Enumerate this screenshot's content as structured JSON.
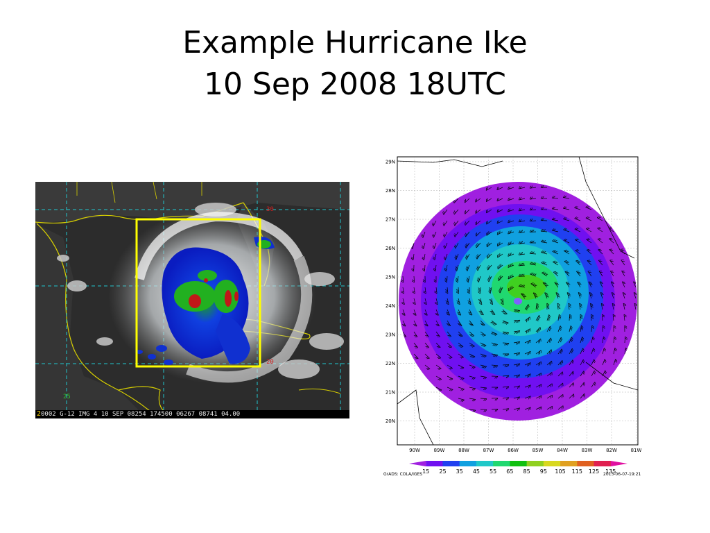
{
  "slide": {
    "title_line1": "Example Hurricane Ike",
    "title_line2": "10 Sep 2008 18UTC"
  },
  "satellite": {
    "frame_number": "2",
    "caption": "0002 G-12 IMG   4 10 SEP 08254 174500 06267 08741 04.00",
    "lat_labels": [
      "30",
      "25",
      "20"
    ],
    "box_color": "#ffff00",
    "colors": {
      "deep": "#1030d0",
      "mid": "#22b020",
      "core": "#c01818",
      "cloud": "#e0f0f0"
    }
  },
  "model": {
    "lat_ticks": [
      "29N",
      "28N",
      "27N",
      "26N",
      "25N",
      "24N",
      "23N",
      "22N",
      "21N",
      "20N"
    ],
    "lon_ticks": [
      "90W",
      "89W",
      "88W",
      "87W",
      "86W",
      "85W",
      "84W",
      "83W",
      "82W",
      "81W"
    ],
    "colorbar_values": [
      "15",
      "25",
      "35",
      "45",
      "55",
      "65",
      "85",
      "95",
      "105",
      "115",
      "125",
      "135"
    ],
    "colorbar_colors": [
      "#a020e0",
      "#7010f0",
      "#2040f0",
      "#10a0e0",
      "#20c8c8",
      "#20d870",
      "#10c010",
      "#90d020",
      "#d8d820",
      "#e0a020",
      "#e06020",
      "#e02050",
      "#e010a0"
    ],
    "footer_left": "GrADS: COLA/IGES",
    "footer_right": "2013-06-07-19:21"
  }
}
